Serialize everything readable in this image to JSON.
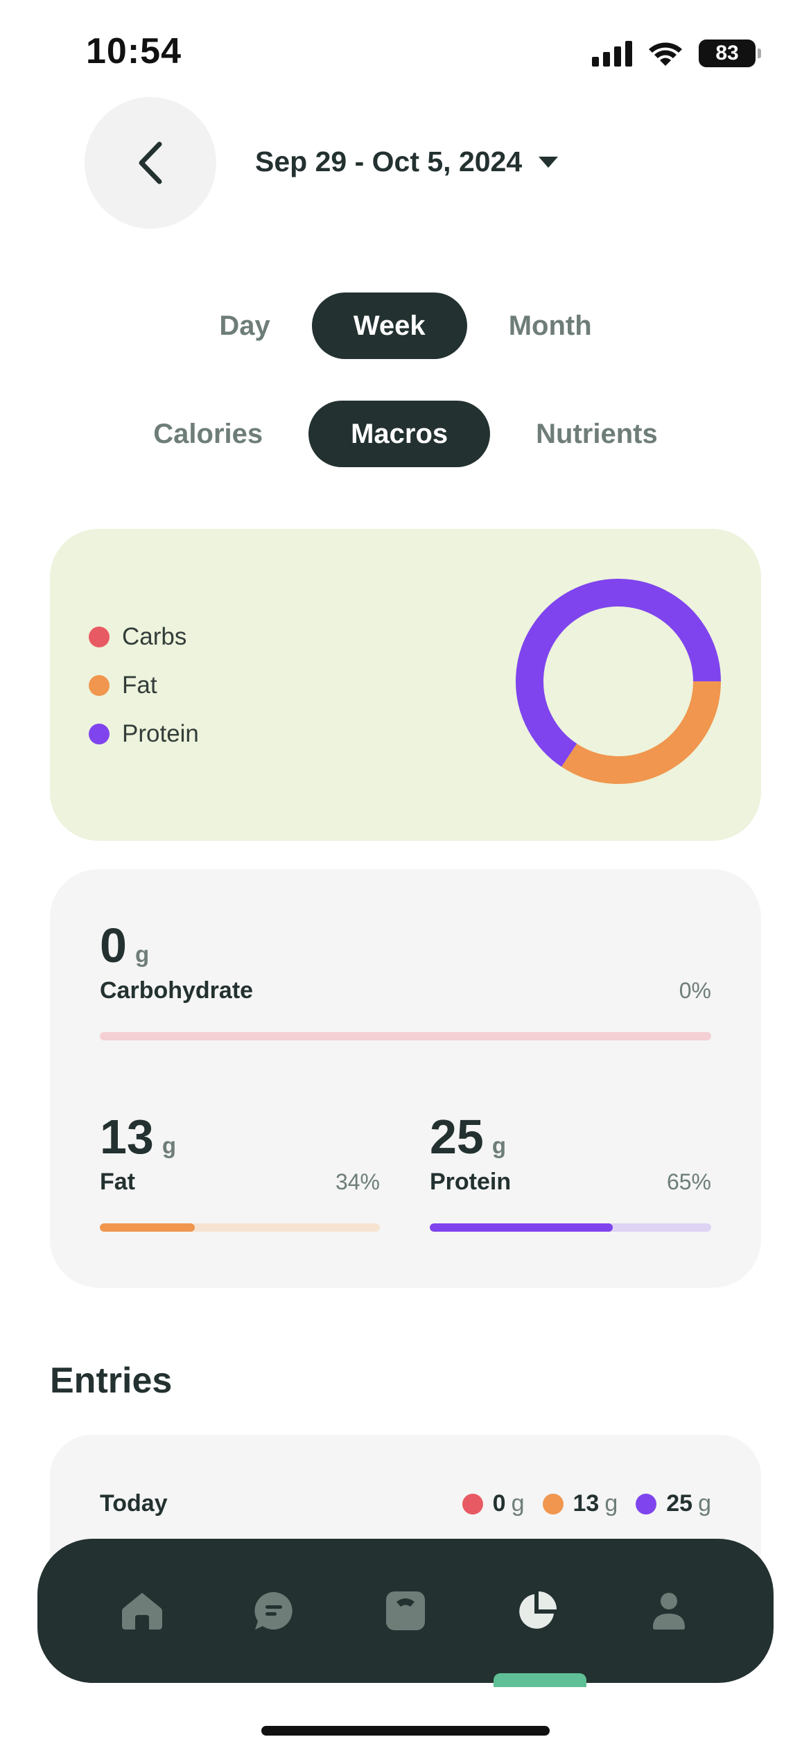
{
  "status_bar": {
    "time": "10:54",
    "battery": "83",
    "icons": [
      "signal-icon",
      "wifi-icon",
      "battery-icon"
    ]
  },
  "header": {
    "back_icon": "chevron-left-icon",
    "date_range": "Sep 29 - Oct 5, 2024",
    "dropdown_icon": "caret-down-icon"
  },
  "period_tabs": [
    {
      "label": "Day",
      "active": false
    },
    {
      "label": "Week",
      "active": true
    },
    {
      "label": "Month",
      "active": false
    }
  ],
  "view_tabs": [
    {
      "label": "Calories",
      "active": false
    },
    {
      "label": "Macros",
      "active": true
    },
    {
      "label": "Nutrients",
      "active": false
    }
  ],
  "chart_data": {
    "type": "pie",
    "donut": true,
    "categories": [
      "Carbs",
      "Fat",
      "Protein"
    ],
    "values": [
      0,
      34,
      65
    ],
    "colors": [
      "#e85a63",
      "#f0964e",
      "#7f44ee"
    ],
    "title": "",
    "legend_position": "left"
  },
  "macros": {
    "carbohydrate": {
      "value": "0",
      "unit": "g",
      "label": "Carbohydrate",
      "percent": "0%",
      "fraction": 0.0,
      "color": "#e85a63",
      "track": "#f4cfd3"
    },
    "fat": {
      "value": "13",
      "unit": "g",
      "label": "Fat",
      "percent": "34%",
      "fraction": 0.34,
      "color": "#f0964e",
      "track": "#f6e3d2"
    },
    "protein": {
      "value": "25",
      "unit": "g",
      "label": "Protein",
      "percent": "65%",
      "fraction": 0.65,
      "color": "#7f44ee",
      "track": "#dfd3f4"
    }
  },
  "entries": {
    "title": "Entries",
    "rows": [
      {
        "date": "Today",
        "carbs": "0",
        "fat": "13",
        "protein": "25",
        "unit": "g"
      }
    ]
  },
  "bottom_nav": {
    "items": [
      "home-icon",
      "chat-icon",
      "scale-icon",
      "pie-chart-icon",
      "profile-icon"
    ],
    "active_index": 3,
    "icon_color": "#6e7d78",
    "active_color": "#e7ece9",
    "indicator_color": "#5fbf97"
  }
}
